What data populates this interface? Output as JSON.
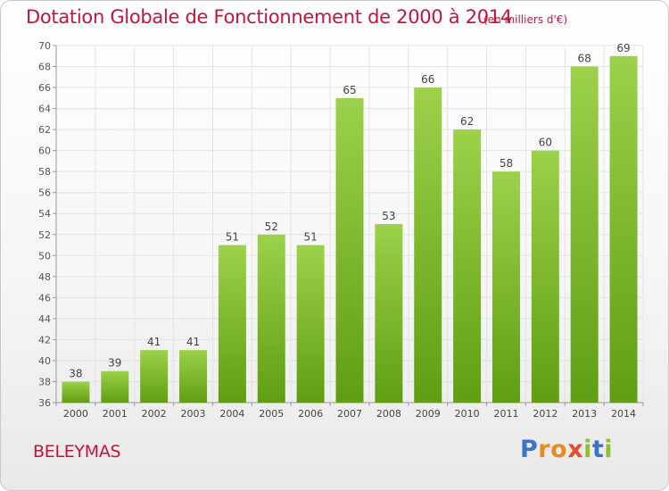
{
  "header": {
    "title": "Dotation Globale de Fonctionnement de 2000 à 2014",
    "subtitle": "(en milliers d'€)"
  },
  "footer": {
    "commune": "BELEYMAS",
    "logo_text": "Proxiti",
    "logo_colors": [
      "#3a74c9",
      "#e98a1c",
      "#e98a1c",
      "#e94b2a",
      "#8fbf2e",
      "#3a74c9",
      "#8fbf2e"
    ]
  },
  "colors": {
    "accent": "#c8123a",
    "bar_top": "#9dd14b",
    "bar_bottom": "#5f9e12",
    "grid": "#e4e4e4"
  },
  "chart_data": {
    "type": "bar",
    "categories": [
      "2000",
      "2001",
      "2002",
      "2003",
      "2004",
      "2005",
      "2006",
      "2007",
      "2008",
      "2009",
      "2010",
      "2011",
      "2012",
      "2013",
      "2014"
    ],
    "values": [
      38,
      39,
      41,
      41,
      51,
      52,
      51,
      65,
      53,
      66,
      62,
      58,
      60,
      68,
      69
    ],
    "ylim": [
      36,
      70
    ],
    "yticks": [
      36,
      38,
      40,
      42,
      44,
      46,
      48,
      50,
      52,
      54,
      56,
      58,
      60,
      62,
      64,
      66,
      68,
      70
    ],
    "grid": true,
    "data_labels": true
  }
}
